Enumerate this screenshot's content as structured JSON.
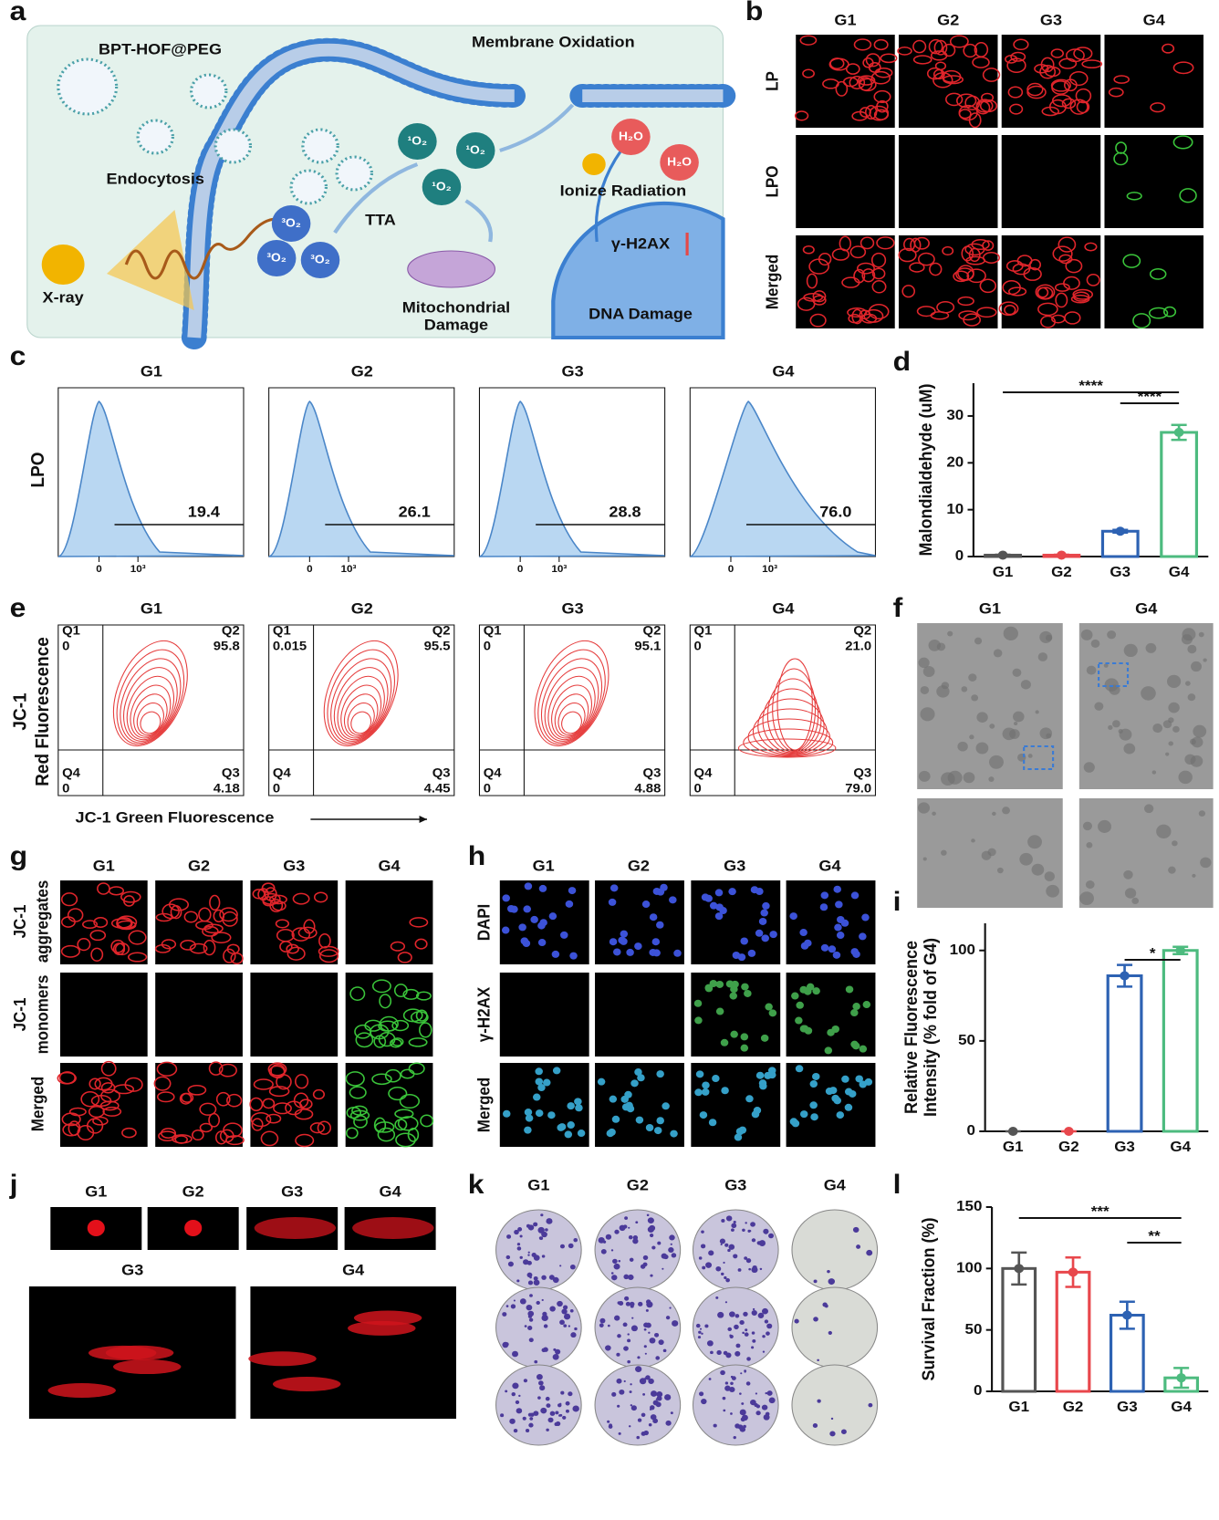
{
  "panel_labels": [
    "a",
    "b",
    "c",
    "d",
    "e",
    "f",
    "g",
    "h",
    "i",
    "j",
    "k",
    "l"
  ],
  "a": {
    "material": "BPT-HOF@PEG",
    "membrane": "Membrane Oxidation",
    "endocytosis": "Endocytosis",
    "xray": "X-ray",
    "tta": "TTA",
    "singlet": "¹O₂",
    "triplet": "³O₂",
    "water": "H₂O",
    "radiation": "Ionize  Radiation",
    "marker": "γ-H2AX",
    "mito": [
      "Mitochondrial",
      "Damage"
    ],
    "dna": "DNA Damage"
  },
  "b": {
    "columns": [
      "G1",
      "G2",
      "G3",
      "G4"
    ],
    "rows": [
      "LP",
      "LPO",
      "Merged"
    ]
  },
  "c": {
    "columns": [
      "G1",
      "G2",
      "G3",
      "G4"
    ],
    "ylabel": "LPO",
    "gates": [
      "19.4",
      "26.1",
      "28.8",
      "76.0"
    ],
    "xticks": [
      "0",
      "10³"
    ]
  },
  "e": {
    "columns": [
      "G1",
      "G2",
      "G3",
      "G4"
    ],
    "quadrant_names": [
      "Q1",
      "Q2",
      "Q3",
      "Q4"
    ],
    "quadrant_values": [
      [
        "0",
        "95.8",
        "4.18",
        "0"
      ],
      [
        "0.015",
        "95.5",
        "4.45",
        "0"
      ],
      [
        "0",
        "95.1",
        "4.88",
        "0"
      ],
      [
        "0",
        "21.0",
        "79.0",
        "0"
      ]
    ],
    "xlabel": "JC-1 Green Fluorescence",
    "ylabel": [
      "JC-1",
      "Red Fluorescence"
    ]
  },
  "f": {
    "columns": [
      "G1",
      "G4"
    ]
  },
  "g": {
    "columns": [
      "G1",
      "G2",
      "G3",
      "G4"
    ],
    "rows": [
      [
        "JC-1",
        "aggregates"
      ],
      [
        "JC-1",
        "monomers"
      ],
      [
        "Merged"
      ]
    ]
  },
  "h": {
    "columns": [
      "G1",
      "G2",
      "G3",
      "G4"
    ],
    "rows": [
      "DAPI",
      "γ-H2AX",
      "Merged"
    ]
  },
  "j": {
    "columns": [
      "G1",
      "G2",
      "G3",
      "G4"
    ],
    "bottom": [
      "G3",
      "G4"
    ]
  },
  "k": {
    "columns": [
      "G1",
      "G2",
      "G3",
      "G4"
    ]
  },
  "chart_data": [
    {
      "type": "bar",
      "ylabel": [
        "Malondialdehyde (uM)"
      ],
      "categories": [
        "G1",
        "G2",
        "G3",
        "G4"
      ],
      "values": [
        0.3,
        0.3,
        5.4,
        26.5
      ],
      "errors": [
        0.1,
        0.1,
        0.3,
        1.6
      ],
      "colors": [
        "#555555",
        "#e8474c",
        "#2d62b3",
        "#4dbb7f"
      ],
      "ylim": [
        0,
        37
      ],
      "yticks": [
        0,
        10,
        20,
        30
      ],
      "significance": [
        "****",
        "****"
      ]
    },
    {
      "type": "bar",
      "ylabel": [
        "Relative Fluorescence",
        "Intensity (% fold of G4)"
      ],
      "categories": [
        "G1",
        "G2",
        "G3",
        "G4"
      ],
      "values": [
        0,
        0,
        86,
        100
      ],
      "errors": [
        0,
        0,
        6,
        2
      ],
      "colors": [
        "#555555",
        "#e8474c",
        "#2d62b3",
        "#4dbb7f"
      ],
      "ylim": [
        0,
        115
      ],
      "yticks": [
        0,
        50,
        100
      ],
      "significance": [
        "*"
      ]
    },
    {
      "type": "bar",
      "ylabel": [
        "Survival Fraction (%)"
      ],
      "categories": [
        "G1",
        "G2",
        "G3",
        "G4"
      ],
      "values": [
        100,
        97,
        62,
        11
      ],
      "errors": [
        13,
        12,
        11,
        8
      ],
      "colors": [
        "#555555",
        "#e8474c",
        "#2d62b3",
        "#4dbb7f"
      ],
      "ylim": [
        0,
        150
      ],
      "yticks": [
        0,
        50,
        100,
        150
      ],
      "significance": [
        "***",
        "**"
      ]
    }
  ]
}
